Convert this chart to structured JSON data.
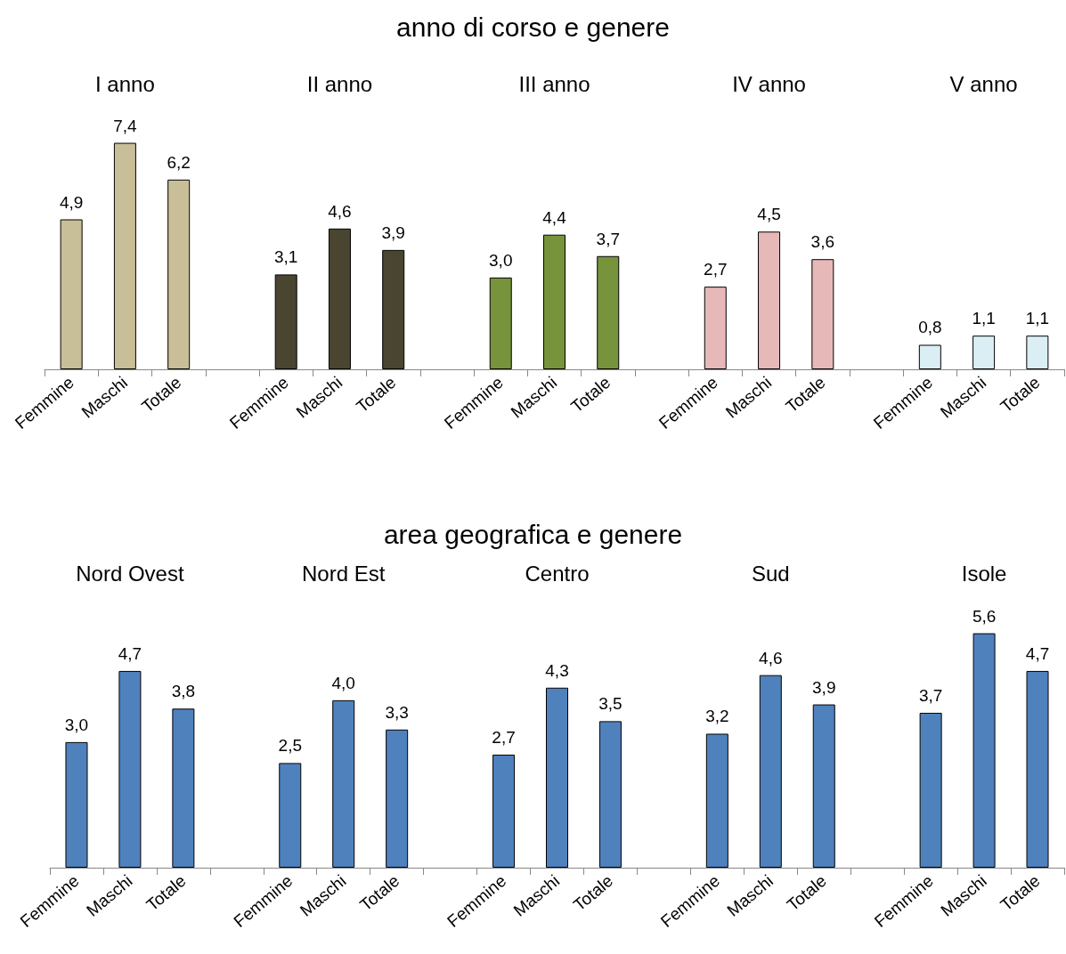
{
  "chart_data": [
    {
      "type": "bar",
      "title": "anno di corso e genere",
      "annotations": [
        "I anno",
        "II anno",
        "III anno",
        "IV anno",
        "V anno"
      ],
      "categories": [
        "Femmine",
        "Maschi",
        "Totale",
        null,
        "Femmine",
        "Maschi",
        "Totale",
        null,
        "Femmine",
        "Maschi",
        "Totale",
        null,
        "Femmine",
        "Maschi",
        "Totale",
        null,
        "Femmine",
        "Maschi",
        "Totale"
      ],
      "grid": false,
      "series": [
        {
          "color": "#c8bf98",
          "values": [
            4.9,
            7.4,
            6.2,
            null,
            null,
            null,
            null,
            null,
            null,
            null,
            null,
            null,
            null,
            null,
            null,
            null,
            null,
            null,
            null
          ],
          "value_labels": [
            "4,9",
            "7,4",
            "6,2",
            null,
            null,
            null,
            null,
            null,
            null,
            null,
            null,
            null,
            null,
            null,
            null,
            null,
            null,
            null,
            null
          ]
        },
        {
          "color": "#4a4530",
          "values": [
            null,
            null,
            null,
            null,
            3.1,
            4.6,
            3.9,
            null,
            null,
            null,
            null,
            null,
            null,
            null,
            null,
            null,
            null,
            null,
            null
          ],
          "value_labels": [
            null,
            null,
            null,
            null,
            "3,1",
            "4,6",
            "3,9",
            null,
            null,
            null,
            null,
            null,
            null,
            null,
            null,
            null,
            null,
            null,
            null
          ]
        },
        {
          "color": "#77933c",
          "values": [
            null,
            null,
            null,
            null,
            null,
            null,
            null,
            null,
            3.0,
            4.4,
            3.7,
            null,
            null,
            null,
            null,
            null,
            null,
            null,
            null
          ],
          "value_labels": [
            null,
            null,
            null,
            null,
            null,
            null,
            null,
            null,
            "3,0",
            "4,4",
            "3,7",
            null,
            null,
            null,
            null,
            null,
            null,
            null,
            null
          ]
        },
        {
          "color": "#e6b9b8",
          "values": [
            null,
            null,
            null,
            null,
            null,
            null,
            null,
            null,
            null,
            null,
            null,
            null,
            2.7,
            4.5,
            3.6,
            null,
            null,
            null,
            null
          ],
          "value_labels": [
            null,
            null,
            null,
            null,
            null,
            null,
            null,
            null,
            null,
            null,
            null,
            null,
            "2,7",
            "4,5",
            "3,6",
            null,
            null,
            null,
            null
          ]
        },
        {
          "color": "#dbeef4",
          "values": [
            null,
            null,
            null,
            null,
            null,
            null,
            null,
            null,
            null,
            null,
            null,
            null,
            null,
            null,
            null,
            null,
            0.8,
            1.1,
            1.1
          ],
          "value_labels": [
            null,
            null,
            null,
            null,
            null,
            null,
            null,
            null,
            null,
            null,
            null,
            null,
            null,
            null,
            null,
            null,
            "0,8",
            "1,1",
            "1,1"
          ]
        }
      ]
    },
    {
      "type": "bar",
      "title": "area geografica e genere",
      "annotations": [
        "Nord Ovest",
        "Nord Est",
        "Centro",
        "Sud",
        "Isole"
      ],
      "categories": [
        "Femmine",
        "Maschi",
        "Totale",
        null,
        "Femmine",
        "Maschi",
        "Totale",
        null,
        "Femmine",
        "Maschi",
        "Totale",
        null,
        "Femmine",
        "Maschi",
        "Totale",
        null,
        "Femmine",
        "Maschi",
        "Totale"
      ],
      "grid": false,
      "series": [
        {
          "color": "#4f81bd",
          "values": [
            3.0,
            4.7,
            3.8,
            null,
            null,
            null,
            null,
            null,
            null,
            null,
            null,
            null,
            null,
            null,
            null,
            null,
            null,
            null,
            null
          ],
          "value_labels": [
            "3,0",
            "4,7",
            "3,8",
            null,
            null,
            null,
            null,
            null,
            null,
            null,
            null,
            null,
            null,
            null,
            null,
            null,
            null,
            null,
            null
          ]
        },
        {
          "color": "#4f81bd",
          "values": [
            null,
            null,
            null,
            null,
            2.5,
            4.0,
            3.3,
            null,
            null,
            null,
            null,
            null,
            null,
            null,
            null,
            null,
            null,
            null,
            null
          ],
          "value_labels": [
            null,
            null,
            null,
            null,
            "2,5",
            "4,0",
            "3,3",
            null,
            null,
            null,
            null,
            null,
            null,
            null,
            null,
            null,
            null,
            null,
            null
          ]
        },
        {
          "color": "#4f81bd",
          "values": [
            null,
            null,
            null,
            null,
            null,
            null,
            null,
            null,
            2.7,
            4.3,
            3.5,
            null,
            null,
            null,
            null,
            null,
            null,
            null,
            null
          ],
          "value_labels": [
            null,
            null,
            null,
            null,
            null,
            null,
            null,
            null,
            "2,7",
            "4,3",
            "3,5",
            null,
            null,
            null,
            null,
            null,
            null,
            null,
            null
          ]
        },
        {
          "color": "#4f81bd",
          "values": [
            null,
            null,
            null,
            null,
            null,
            null,
            null,
            null,
            null,
            null,
            null,
            null,
            3.2,
            4.6,
            3.9,
            null,
            null,
            null,
            null
          ],
          "value_labels": [
            null,
            null,
            null,
            null,
            null,
            null,
            null,
            null,
            null,
            null,
            null,
            null,
            "3,2",
            "4,6",
            "3,9",
            null,
            null,
            null,
            null
          ]
        },
        {
          "color": "#4f81bd",
          "values": [
            null,
            null,
            null,
            null,
            null,
            null,
            null,
            null,
            null,
            null,
            null,
            null,
            null,
            null,
            null,
            null,
            3.7,
            5.6,
            4.7
          ],
          "value_labels": [
            null,
            null,
            null,
            null,
            null,
            null,
            null,
            null,
            null,
            null,
            null,
            null,
            null,
            null,
            null,
            null,
            "3,7",
            "5,6",
            "4,7"
          ]
        }
      ]
    }
  ]
}
